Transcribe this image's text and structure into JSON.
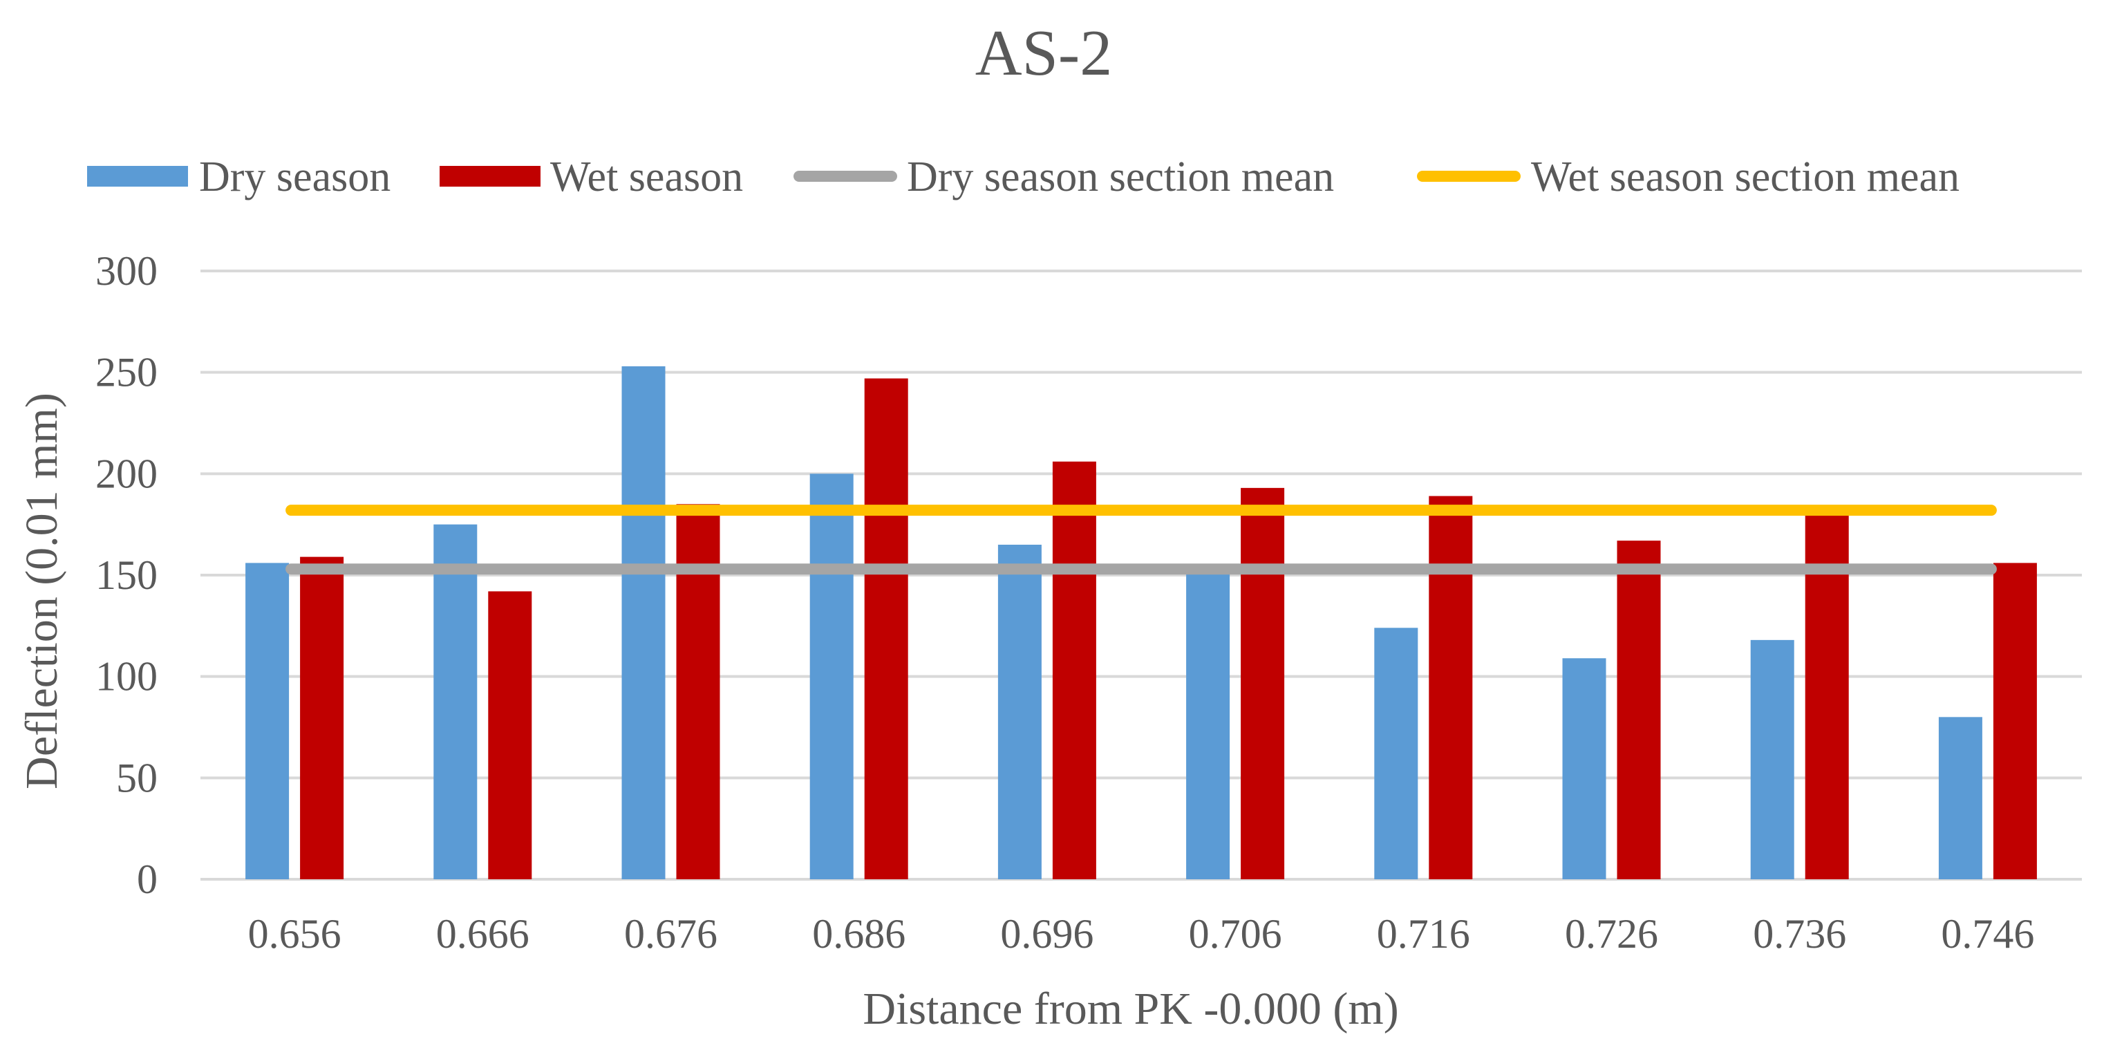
{
  "chart_data": {
    "type": "bar",
    "title": "AS-2",
    "xlabel": "Distance from PK -0.000 (m)",
    "ylabel": "Deflection (0.01 mm)",
    "ylim": [
      0,
      300
    ],
    "yticks": [
      0,
      50,
      100,
      150,
      200,
      250,
      300
    ],
    "grid": true,
    "legend_position": "top",
    "categories": [
      "0.656",
      "0.666",
      "0.676",
      "0.686",
      "0.696",
      "0.706",
      "0.716",
      "0.726",
      "0.736",
      "0.746"
    ],
    "series": [
      {
        "name": "Dry season",
        "kind": "bar",
        "color": "#5B9BD5",
        "values": [
          156,
          175,
          253,
          200,
          165,
          153,
          124,
          109,
          118,
          80
        ]
      },
      {
        "name": "Wet season",
        "kind": "bar",
        "color": "#C00000",
        "values": [
          159,
          142,
          185,
          247,
          206,
          193,
          189,
          167,
          181,
          156
        ]
      },
      {
        "name": "Dry season section mean",
        "kind": "line",
        "color": "#A5A5A5",
        "value": 153
      },
      {
        "name": "Wet season section mean",
        "kind": "line",
        "color": "#FFC000",
        "value": 182
      }
    ]
  }
}
